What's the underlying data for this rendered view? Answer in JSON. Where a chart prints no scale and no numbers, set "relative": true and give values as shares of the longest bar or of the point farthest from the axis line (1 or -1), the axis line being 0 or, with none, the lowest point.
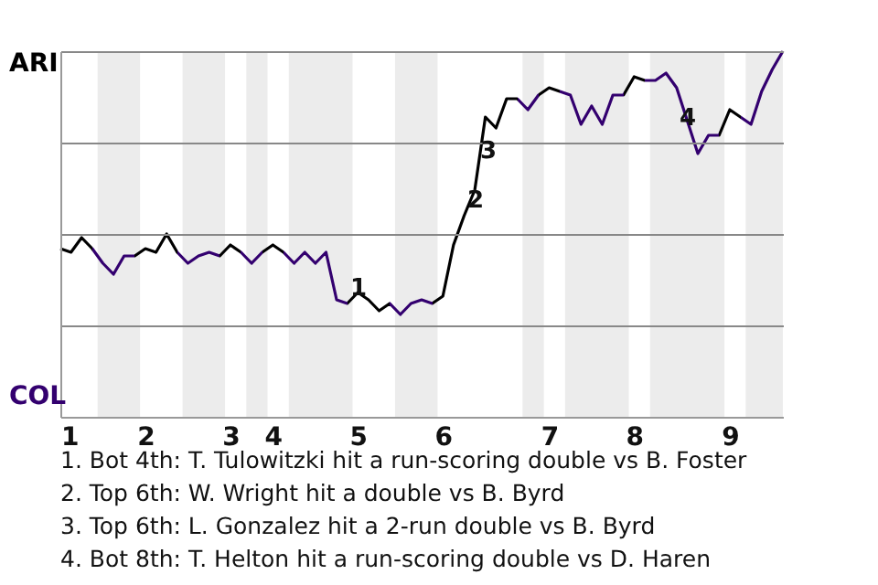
{
  "chart_data": {
    "type": "line",
    "relative": true,
    "categories": [
      "1",
      null,
      null,
      null,
      null,
      null,
      null,
      null,
      "2",
      null,
      null,
      null,
      null,
      null,
      null,
      null,
      "3",
      null,
      null,
      null,
      "4",
      null,
      null,
      null,
      null,
      null,
      null,
      null,
      "5",
      null,
      null,
      null,
      null,
      null,
      null,
      null,
      "6",
      null,
      null,
      null,
      null,
      null,
      null,
      null,
      null,
      null,
      "7",
      null,
      null,
      null,
      null,
      null,
      null,
      null,
      "8",
      null,
      null,
      null,
      null,
      null,
      null,
      null,
      null,
      "9",
      null,
      null,
      null,
      null,
      null
    ],
    "series": [
      {
        "values": [
          0.46,
          0.45,
          0.49,
          0.46,
          0.42,
          0.39,
          0.44,
          0.44,
          0.46,
          0.45,
          0.5,
          0.45,
          0.42,
          0.44,
          0.45,
          0.44,
          0.47,
          0.45,
          0.42,
          0.45,
          0.47,
          0.45,
          0.42,
          0.45,
          0.42,
          0.45,
          0.32,
          0.31,
          0.34,
          0.32,
          0.29,
          0.31,
          0.28,
          0.31,
          0.32,
          0.31,
          0.33,
          0.47,
          0.55,
          0.62,
          0.82,
          0.79,
          0.87,
          0.87,
          0.84,
          0.88,
          0.9,
          0.89,
          0.88,
          0.8,
          0.85,
          0.8,
          0.88,
          0.88,
          0.93,
          0.92,
          0.92,
          0.94,
          0.9,
          0.81,
          0.72,
          0.77,
          0.77,
          0.84,
          0.82,
          0.8,
          0.89,
          0.95,
          1
        ],
        "colors": [
          "#000000",
          "#000000",
          "#000000",
          "#000000",
          "#33006f",
          "#33006f",
          "#33006f",
          "#33006f",
          "#000000",
          "#000000",
          "#000000",
          "#000000",
          "#33006f",
          "#33006f",
          "#33006f",
          "#33006f",
          "#000000",
          "#000000",
          "#33006f",
          "#33006f",
          "#000000",
          "#000000",
          "#33006f",
          "#33006f",
          "#33006f",
          "#33006f",
          "#33006f",
          "#33006f",
          "#000000",
          "#000000",
          "#000000",
          "#000000",
          "#33006f",
          "#33006f",
          "#33006f",
          "#33006f",
          "#000000",
          "#000000",
          "#000000",
          "#000000",
          "#000000",
          "#000000",
          "#000000",
          "#000000",
          "#33006f",
          "#33006f",
          "#000000",
          "#000000",
          "#33006f",
          "#33006f",
          "#33006f",
          "#33006f",
          "#33006f",
          "#33006f",
          "#000000",
          "#000000",
          "#33006f",
          "#33006f",
          "#33006f",
          "#33006f",
          "#33006f",
          "#33006f",
          "#33006f",
          "#000000",
          "#000000",
          "#33006f",
          "#33006f",
          "#33006f",
          "#33006f"
        ]
      }
    ],
    "grid": "y",
    "annotations": [
      "ARI",
      "COL",
      "1",
      "2",
      "3",
      "4",
      "1. Bot 4th: T. Tulowitzki hit a run-scoring double vs B. Foster",
      "2. Top 6th: W. Wright hit a double vs B. Byrd",
      "3. Top 6th: L. Gonzalez hit a 2-run double vs B. Byrd",
      "4. Bot 8th: T. Helton hit a run-scoring double vs D. Haren"
    ]
  }
}
